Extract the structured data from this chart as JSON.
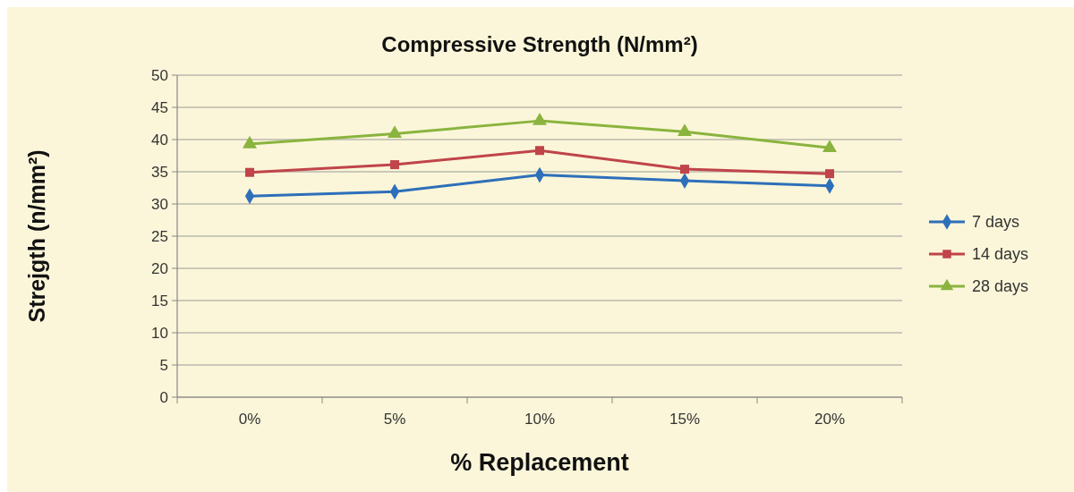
{
  "chart_data": {
    "type": "line",
    "title": "Compressive Strength (N/mm²)",
    "xlabel": "% Replacement",
    "ylabel": "Strejgth (n/mm²)",
    "categories": [
      "0%",
      "5%",
      "10%",
      "15%",
      "20%"
    ],
    "series": [
      {
        "name": "7 days",
        "color": "#2e6fba",
        "marker": "diamond",
        "values": [
          31.2,
          31.9,
          34.5,
          33.6,
          32.8
        ]
      },
      {
        "name": "14 days",
        "color": "#c0444a",
        "marker": "square",
        "values": [
          34.9,
          36.1,
          38.3,
          35.4,
          34.7
        ]
      },
      {
        "name": "28 days",
        "color": "#8ab43e",
        "marker": "triangle",
        "values": [
          39.3,
          40.9,
          42.9,
          41.2,
          38.7
        ]
      }
    ],
    "ylim": [
      0,
      50
    ],
    "yticks": [
      0,
      5,
      10,
      15,
      20,
      25,
      30,
      35,
      40,
      45,
      50
    ],
    "grid": "y",
    "legend": "right"
  }
}
